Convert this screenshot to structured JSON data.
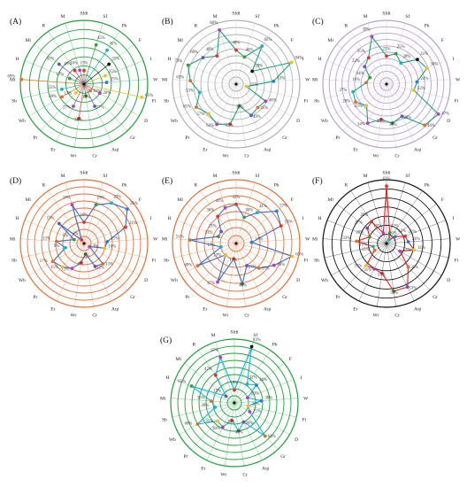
{
  "figure": {
    "categories": [
      "Sfdi",
      "Sf",
      "Ph",
      "F",
      "I",
      "W",
      "Fi",
      "D",
      "Gr",
      "Aqi",
      "Cr",
      "Wr",
      "Er",
      "Pr",
      "Wb",
      "Sb",
      "Mi",
      "H",
      "Ml",
      "R",
      "M"
    ],
    "colors": {
      "ring_a": "#1f9e3a",
      "ring_b": "#b0b0b0",
      "ring_c": "#b9a0c8",
      "ring_d": "#e0703a",
      "ring_e": "#e0703a",
      "ring_f": "#111111",
      "ring_g": "#1f9e3a",
      "connector": "#1aa37a"
    }
  },
  "chart_data": [
    {
      "panel": "(A)",
      "type": "radar",
      "rmax": 70,
      "rings": 7,
      "series": [
        {
          "values": [
            15,
            45,
            45,
            35,
            25,
            25,
            65,
            20,
            10,
            27,
            13,
            38,
            27,
            13,
            28,
            25,
            69,
            17,
            35,
            18,
            16
          ]
        }
      ],
      "value_labels": [
        "15%",
        "45%",
        "45%",
        "35%",
        "25%",
        "25%",
        "65%",
        "20%",
        "10%",
        "27%",
        "13%",
        "38%",
        "27%",
        "13%",
        "28%",
        "25%",
        "69%",
        "17%",
        "35%",
        "18%",
        "16%"
      ],
      "point_colors": [
        "#e6332a",
        "#3a9a3a",
        "#1ab0c8",
        "#111111",
        "#f0c020",
        "#2a7fd0",
        "#f0c020",
        "#b040c0",
        "#e07020",
        "#6a4fc0",
        "#2e7d32",
        "#e6332a",
        "#b040c0",
        "#f0c020",
        "#e07020",
        "#1ab0c8",
        "#e07020",
        "#3a9a3a",
        "#6a4fc0",
        "#e6332a",
        "#b040c0"
      ],
      "connect": false
    },
    {
      "panel": "(B)",
      "type": "radar",
      "rmax": 90,
      "rings": 9,
      "series": [
        {
          "values": [
            48,
            40,
            65,
            29,
            84,
            53,
            15,
            48,
            45,
            49,
            31,
            57,
            63,
            57,
            65,
            53,
            65,
            73,
            60,
            48,
            80
          ]
        }
      ],
      "value_labels": [
        "48%",
        "40%",
        "65%",
        "29%",
        "84%",
        "53%",
        "15%",
        "48%",
        "45%",
        "49%",
        "31%",
        "57%",
        "63%",
        "57%",
        "65%",
        "53%",
        "65%",
        "73%",
        "60%",
        "48%",
        "80%"
      ],
      "point_colors": [
        "#e6332a",
        "#3a9a3a",
        "#1ab0c8",
        "#111111",
        "#f0c020",
        "#2a7fd0",
        "#f0c020",
        "#b040c0",
        "#e07020",
        "#6a4fc0",
        "#2e7d32",
        "#e6332a",
        "#b040c0",
        "#f0c020",
        "#e07020",
        "#1ab0c8",
        "#e07020",
        "#3a9a3a",
        "#6a4fc0",
        "#e6332a",
        "#b040c0"
      ],
      "connect": true,
      "line_color": "#1aa37a"
    },
    {
      "panel": "(C)",
      "type": "radar",
      "rmax": 50,
      "rings": 10,
      "series": [
        {
          "values": [
            22,
            25,
            20,
            31,
            34,
            24,
            22,
            47,
            44,
            28,
            31,
            28,
            34,
            23,
            28,
            27,
            16,
            14,
            22,
            25,
            39
          ]
        }
      ],
      "value_labels": [
        "22%",
        "25%",
        "20%",
        "31%",
        "34%",
        "24%",
        "22%",
        "47%",
        "44%",
        "28%",
        "31%",
        "28%",
        "34%",
        "23%",
        "28%",
        "27%",
        "16%",
        "14%",
        "22%",
        "25%",
        "39%"
      ],
      "point_colors": [
        "#e6332a",
        "#3a9a3a",
        "#1ab0c8",
        "#111111",
        "#f0c020",
        "#2a7fd0",
        "#f0c020",
        "#b040c0",
        "#e07020",
        "#6a4fc0",
        "#2e7d32",
        "#e6332a",
        "#b040c0",
        "#f0c020",
        "#e07020",
        "#1ab0c8",
        "#e07020",
        "#3a9a3a",
        "#6a4fc0",
        "#e6332a",
        "#b040c0"
      ],
      "connect": true,
      "line_color": "#1aa37a"
    },
    {
      "panel": "(D)",
      "type": "radar",
      "rmax": 30,
      "rings": 9,
      "series": [
        {
          "values": [
            10,
            19,
            23,
            26,
            21,
            11,
            10,
            3,
            13,
            12,
            5,
            9,
            13,
            15,
            17,
            9,
            13,
            5,
            15,
            2,
            19
          ]
        }
      ],
      "value_labels": [
        "10%",
        "19%",
        "23%",
        "26%",
        "21%",
        "11%",
        "10%",
        "3%",
        "13%",
        "12%",
        "5%",
        "9%",
        "13%",
        "15%",
        "17%",
        "9%",
        "13%",
        "5%",
        "15%",
        "2%",
        "19%"
      ],
      "point_colors": [
        "#e6332a",
        "#3a9a3a",
        "#1ab0c8",
        "#2a7fd0",
        "#e6332a",
        "#2a7fd0",
        "#f0c020",
        "#b040c0",
        "#e07020",
        "#6a4fc0",
        "#2e7d32",
        "#e6332a",
        "#b040c0",
        "#f0c020",
        "#e07020",
        "#1ab0c8",
        "#e07020",
        "#3a9a3a",
        "#6a4fc0",
        "#e6332a",
        "#b040c0"
      ],
      "connect": true,
      "line_color": "#3a6ac0"
    },
    {
      "panel": "(E)",
      "type": "radar",
      "rmax": 70,
      "rings": 8,
      "series": [
        {
          "values": [
            43,
            30,
            41,
            57,
            53,
            17,
            63,
            48,
            37,
            27,
            45,
            17,
            47,
            17,
            49,
            17,
            51,
            21,
            21,
            36,
            41
          ]
        }
      ],
      "value_labels": [
        "43%",
        "30%",
        "41%",
        "57%",
        "53%",
        "17%",
        "63%",
        "48%",
        "37%",
        "27%",
        "45%",
        "17%",
        "47%",
        "17%",
        "49%",
        "17%",
        "51%",
        "21%",
        "21%",
        "36%",
        "41%"
      ],
      "point_colors": [
        "#e6332a",
        "#3a9a3a",
        "#1ab0c8",
        "#2a7fd0",
        "#e6332a",
        "#2a7fd0",
        "#f0c020",
        "#b040c0",
        "#e07020",
        "#6a4fc0",
        "#2e7d32",
        "#e6332a",
        "#b040c0",
        "#f0c020",
        "#e07020",
        "#1ab0c8",
        "#e07020",
        "#3a9a3a",
        "#6a4fc0",
        "#e6332a",
        "#b040c0"
      ],
      "connect": true,
      "line_color": "#3a6ac0"
    },
    {
      "panel": "(F)",
      "type": "radar",
      "rmax": 70,
      "rings": 7,
      "series": [
        {
          "values": [
            63,
            12,
            5,
            12,
            22,
            24,
            31,
            17,
            35,
            53,
            53,
            33,
            31,
            33,
            15,
            15,
            33,
            20,
            27,
            29,
            12
          ]
        }
      ],
      "value_labels": [
        "63%",
        "12%",
        "5%",
        "12%",
        "22%",
        "24%",
        "31%",
        "17%",
        "35%",
        "53%",
        "53%",
        "33%",
        "31%",
        "33%",
        "15%",
        "15%",
        "33%",
        "20%",
        "27%",
        "29%",
        "12%"
      ],
      "point_colors": [
        "#e6332a",
        "#3a9a3a",
        "#1ab0c8",
        "#2a7fd0",
        "#e6332a",
        "#2a7fd0",
        "#f0c020",
        "#b040c0",
        "#e07020",
        "#6a4fc0",
        "#2e7d32",
        "#e6332a",
        "#b040c0",
        "#f0c020",
        "#e07020",
        "#1ab0c8",
        "#e07020",
        "#3a9a3a",
        "#6a4fc0",
        "#e6332a",
        "#b040c0"
      ],
      "connect": true,
      "line_color": "#e02020"
    },
    {
      "panel": "(G)",
      "type": "radar",
      "rmax": 90,
      "rings": 9,
      "series": [
        {
          "values": [
            18,
            83,
            32,
            40,
            20,
            38,
            20,
            25,
            64,
            30,
            40,
            25,
            38,
            35,
            60,
            28,
            33,
            65,
            15,
            47,
            67
          ]
        }
      ],
      "value_labels": [
        "18%",
        "83%",
        "32%",
        "40%",
        "20%",
        "38%",
        "20%",
        "25%",
        "64%",
        "30%",
        "40%",
        "25%",
        "38%",
        "35%",
        "60%",
        "28%",
        "33%",
        "65%",
        "15%",
        "47%",
        "67%"
      ],
      "point_colors": [
        "#e6332a",
        "#111111",
        "#1ab0c8",
        "#2a7fd0",
        "#b040c0",
        "#2a7fd0",
        "#f0c020",
        "#b040c0",
        "#e07020",
        "#6a4fc0",
        "#2e7d32",
        "#e6332a",
        "#b040c0",
        "#f0c020",
        "#e07020",
        "#1ab0c8",
        "#e07020",
        "#3a9a3a",
        "#6a4fc0",
        "#e6332a",
        "#b040c0"
      ],
      "connect": true,
      "line_color": "#1ab0e0"
    }
  ]
}
